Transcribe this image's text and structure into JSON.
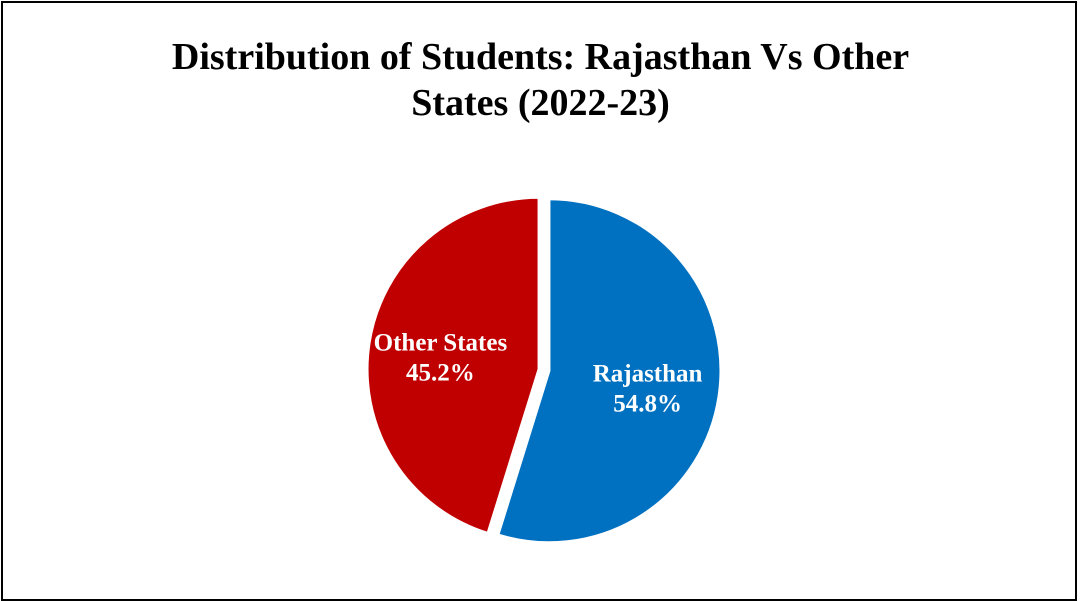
{
  "chart_data": {
    "type": "pie",
    "title": "Distribution of Students: Rajasthan Vs Other States (2022-23)",
    "title_lines": [
      "Distribution of Students: Rajasthan Vs Other",
      "States (2022-23)"
    ],
    "categories": [
      "Rajasthan",
      "Other States"
    ],
    "values": [
      54.8,
      45.2
    ],
    "value_labels": [
      "54.8%",
      "45.2%"
    ],
    "colors": [
      "#0070c0",
      "#c00000"
    ],
    "exploded": true,
    "legend": "none"
  }
}
